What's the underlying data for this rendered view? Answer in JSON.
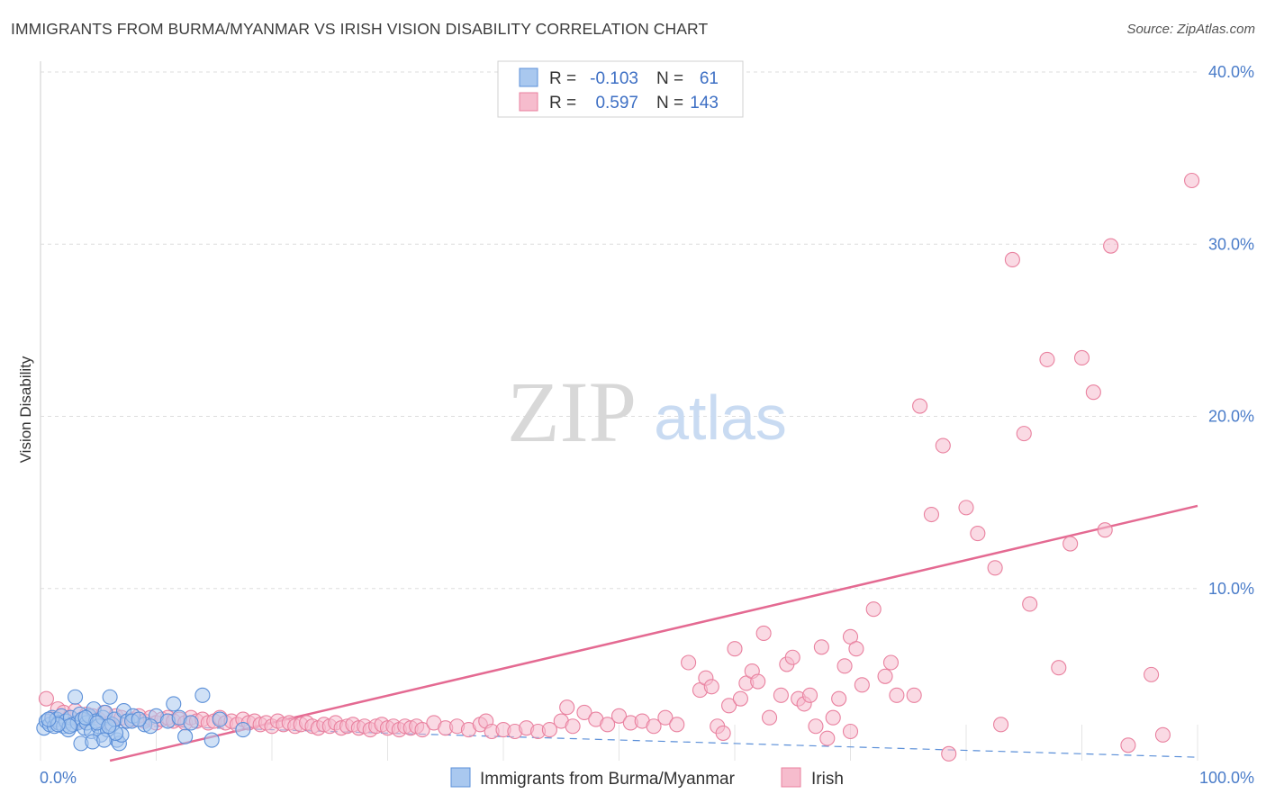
{
  "title": "IMMIGRANTS FROM BURMA/MYANMAR VS IRISH VISION DISABILITY CORRELATION CHART",
  "source": "Source: ZipAtlas.com",
  "watermark": {
    "zip": "ZIP",
    "atlas": "atlas"
  },
  "colors": {
    "blue_fill": "#a9c8ef",
    "blue_stroke": "#5b8fd8",
    "blue_line": "#5b8fd8",
    "pink_fill": "#f6bccd",
    "pink_stroke": "#e9819f",
    "pink_line": "#e46a92",
    "grid": "#dddddd",
    "tick_text": "#4a7cc9"
  },
  "legend": {
    "rows": [
      {
        "r_label": "R =",
        "r_value": "-0.103",
        "n_label": "N =",
        "n_value": "61"
      },
      {
        "r_label": "R =",
        "r_value": "0.597",
        "n_label": "N =",
        "n_value": "143"
      }
    ]
  },
  "chart_data": {
    "type": "scatter",
    "title": "IMMIGRANTS FROM BURMA/MYANMAR VS IRISH VISION DISABILITY CORRELATION CHART",
    "xlabel": "",
    "ylabel": "Vision Disability",
    "xlim": [
      0,
      100
    ],
    "ylim": [
      0,
      40
    ],
    "x_tick_labels": [
      "0.0%",
      "100.0%"
    ],
    "y_ticks": [
      10,
      20,
      30,
      40
    ],
    "y_tick_labels": [
      "10.0%",
      "20.0%",
      "30.0%",
      "40.0%"
    ],
    "grid": true,
    "legend_position": "top-center",
    "series": [
      {
        "name": "Immigrants from Burma/Myanmar",
        "color": "#a9c8ef",
        "trend": {
          "x": [
            0,
            100
          ],
          "y": [
            2.2,
            0.2
          ],
          "style": "dashed"
        },
        "points": [
          [
            0.3,
            1.9
          ],
          [
            0.5,
            2.3
          ],
          [
            0.8,
            2.1
          ],
          [
            1.0,
            2.5
          ],
          [
            1.2,
            2.0
          ],
          [
            1.4,
            2.4
          ],
          [
            1.6,
            2.2
          ],
          [
            1.8,
            2.6
          ],
          [
            2.0,
            2.0
          ],
          [
            2.2,
            2.3
          ],
          [
            2.4,
            1.8
          ],
          [
            2.6,
            2.5
          ],
          [
            2.8,
            2.1
          ],
          [
            3.0,
            3.7
          ],
          [
            3.2,
            2.2
          ],
          [
            3.4,
            2.7
          ],
          [
            3.6,
            2.4
          ],
          [
            3.8,
            1.9
          ],
          [
            4.0,
            2.2
          ],
          [
            4.2,
            2.6
          ],
          [
            4.4,
            1.7
          ],
          [
            4.6,
            3.0
          ],
          [
            4.8,
            2.3
          ],
          [
            5.0,
            2.0
          ],
          [
            5.2,
            1.5
          ],
          [
            5.4,
            2.5
          ],
          [
            5.6,
            2.8
          ],
          [
            5.8,
            1.8
          ],
          [
            6.0,
            3.7
          ],
          [
            6.2,
            2.1
          ],
          [
            6.4,
            2.4
          ],
          [
            6.6,
            1.2
          ],
          [
            6.8,
            1.0
          ],
          [
            7.0,
            1.5
          ],
          [
            7.2,
            2.9
          ],
          [
            7.5,
            2.3
          ],
          [
            8.0,
            2.6
          ],
          [
            9.0,
            2.1
          ],
          [
            10.0,
            2.6
          ],
          [
            11.0,
            2.3
          ],
          [
            11.5,
            3.3
          ],
          [
            12.0,
            2.5
          ],
          [
            12.5,
            1.4
          ],
          [
            13.0,
            2.2
          ],
          [
            14.0,
            3.8
          ],
          [
            14.8,
            1.2
          ],
          [
            15.5,
            2.4
          ],
          [
            3.5,
            1.0
          ],
          [
            4.5,
            1.1
          ],
          [
            5.5,
            1.2
          ],
          [
            6.5,
            1.6
          ],
          [
            2.5,
            2.0
          ],
          [
            1.5,
            2.1
          ],
          [
            0.7,
            2.4
          ],
          [
            3.9,
            2.5
          ],
          [
            4.9,
            2.2
          ],
          [
            5.9,
            2.0
          ],
          [
            7.9,
            2.3
          ],
          [
            17.5,
            1.8
          ],
          [
            9.5,
            2.0
          ],
          [
            8.5,
            2.4
          ]
        ]
      },
      {
        "name": "Irish",
        "color": "#f6bccd",
        "trend": {
          "x": [
            6,
            100
          ],
          "y": [
            0,
            14.8
          ],
          "style": "solid"
        },
        "points": [
          [
            0.5,
            3.6
          ],
          [
            1.0,
            2.4
          ],
          [
            1.5,
            3.0
          ],
          [
            2.0,
            2.8
          ],
          [
            2.5,
            2.5
          ],
          [
            3.0,
            2.9
          ],
          [
            3.5,
            2.3
          ],
          [
            4.0,
            2.7
          ],
          [
            4.5,
            2.6
          ],
          [
            5.0,
            2.4
          ],
          [
            5.5,
            2.8
          ],
          [
            6.0,
            2.2
          ],
          [
            6.5,
            2.6
          ],
          [
            7.0,
            2.5
          ],
          [
            7.5,
            2.3
          ],
          [
            8.0,
            2.4
          ],
          [
            8.5,
            2.6
          ],
          [
            9.0,
            2.3
          ],
          [
            9.5,
            2.5
          ],
          [
            10.0,
            2.2
          ],
          [
            10.5,
            2.4
          ],
          [
            11.0,
            2.5
          ],
          [
            11.5,
            2.3
          ],
          [
            12.0,
            2.4
          ],
          [
            12.5,
            2.2
          ],
          [
            13.0,
            2.5
          ],
          [
            13.5,
            2.3
          ],
          [
            14.0,
            2.4
          ],
          [
            14.5,
            2.2
          ],
          [
            15.0,
            2.3
          ],
          [
            15.5,
            2.5
          ],
          [
            16.0,
            2.2
          ],
          [
            16.5,
            2.3
          ],
          [
            17.0,
            2.1
          ],
          [
            17.5,
            2.4
          ],
          [
            18.0,
            2.2
          ],
          [
            18.5,
            2.3
          ],
          [
            19.0,
            2.1
          ],
          [
            19.5,
            2.2
          ],
          [
            20.0,
            2.0
          ],
          [
            20.5,
            2.3
          ],
          [
            21.0,
            2.1
          ],
          [
            21.5,
            2.2
          ],
          [
            22.0,
            2.0
          ],
          [
            22.5,
            2.1
          ],
          [
            23.0,
            2.2
          ],
          [
            23.5,
            2.0
          ],
          [
            24.0,
            1.9
          ],
          [
            24.5,
            2.1
          ],
          [
            25.0,
            2.0
          ],
          [
            25.5,
            2.2
          ],
          [
            26.0,
            1.9
          ],
          [
            26.5,
            2.0
          ],
          [
            27.0,
            2.1
          ],
          [
            27.5,
            1.9
          ],
          [
            28.0,
            2.0
          ],
          [
            28.5,
            1.8
          ],
          [
            29.0,
            2.0
          ],
          [
            29.5,
            2.1
          ],
          [
            30.0,
            1.9
          ],
          [
            30.5,
            2.0
          ],
          [
            31.0,
            1.8
          ],
          [
            31.5,
            2.0
          ],
          [
            32.0,
            1.9
          ],
          [
            32.5,
            2.0
          ],
          [
            33.0,
            1.8
          ],
          [
            34.0,
            2.2
          ],
          [
            35.0,
            1.9
          ],
          [
            36.0,
            2.0
          ],
          [
            37.0,
            1.8
          ],
          [
            38.0,
            2.1
          ],
          [
            38.5,
            2.3
          ],
          [
            39.0,
            1.7
          ],
          [
            40.0,
            1.8
          ],
          [
            41.0,
            1.7
          ],
          [
            42.0,
            1.9
          ],
          [
            43.0,
            1.7
          ],
          [
            44.0,
            1.8
          ],
          [
            45.0,
            2.3
          ],
          [
            45.5,
            3.1
          ],
          [
            46.0,
            2.0
          ],
          [
            47.0,
            2.8
          ],
          [
            48.0,
            2.4
          ],
          [
            49.0,
            2.1
          ],
          [
            50.0,
            2.6
          ],
          [
            51.0,
            2.2
          ],
          [
            52.0,
            2.3
          ],
          [
            53.0,
            2.0
          ],
          [
            54.0,
            2.5
          ],
          [
            55.0,
            2.1
          ],
          [
            56.0,
            5.7
          ],
          [
            57.0,
            4.1
          ],
          [
            57.5,
            4.8
          ],
          [
            58.0,
            4.3
          ],
          [
            58.5,
            2.0
          ],
          [
            59.0,
            1.6
          ],
          [
            59.5,
            3.2
          ],
          [
            60.0,
            6.5
          ],
          [
            60.5,
            3.6
          ],
          [
            61.0,
            4.5
          ],
          [
            61.5,
            5.2
          ],
          [
            62.0,
            4.6
          ],
          [
            62.5,
            7.4
          ],
          [
            63.0,
            2.5
          ],
          [
            64.0,
            3.8
          ],
          [
            64.5,
            5.6
          ],
          [
            65.0,
            6.0
          ],
          [
            65.5,
            3.6
          ],
          [
            66.0,
            3.3
          ],
          [
            66.5,
            3.8
          ],
          [
            67.0,
            2.0
          ],
          [
            67.5,
            6.6
          ],
          [
            68.0,
            1.3
          ],
          [
            68.5,
            2.5
          ],
          [
            69.0,
            3.6
          ],
          [
            69.5,
            5.5
          ],
          [
            70.0,
            7.2
          ],
          [
            70.5,
            6.5
          ],
          [
            71.0,
            4.4
          ],
          [
            72.0,
            8.8
          ],
          [
            73.0,
            4.9
          ],
          [
            73.5,
            5.7
          ],
          [
            74.0,
            3.8
          ],
          [
            75.5,
            3.8
          ],
          [
            76.0,
            20.6
          ],
          [
            77.0,
            14.3
          ],
          [
            78.0,
            18.3
          ],
          [
            78.5,
            0.4
          ],
          [
            80.0,
            14.7
          ],
          [
            81.0,
            13.2
          ],
          [
            82.5,
            11.2
          ],
          [
            83.0,
            2.1
          ],
          [
            85.0,
            19.0
          ],
          [
            85.5,
            9.1
          ],
          [
            87.0,
            23.3
          ],
          [
            88.0,
            5.4
          ],
          [
            89.0,
            12.6
          ],
          [
            90.0,
            23.4
          ],
          [
            91.0,
            21.4
          ],
          [
            92.0,
            13.4
          ],
          [
            92.5,
            29.9
          ],
          [
            94.0,
            0.9
          ],
          [
            96.0,
            5.0
          ],
          [
            97.0,
            1.5
          ],
          [
            99.5,
            33.7
          ],
          [
            84.0,
            29.1
          ],
          [
            70.0,
            1.7
          ]
        ]
      }
    ],
    "bottom_legend": [
      "Immigrants from Burma/Myanmar",
      "Irish"
    ]
  }
}
